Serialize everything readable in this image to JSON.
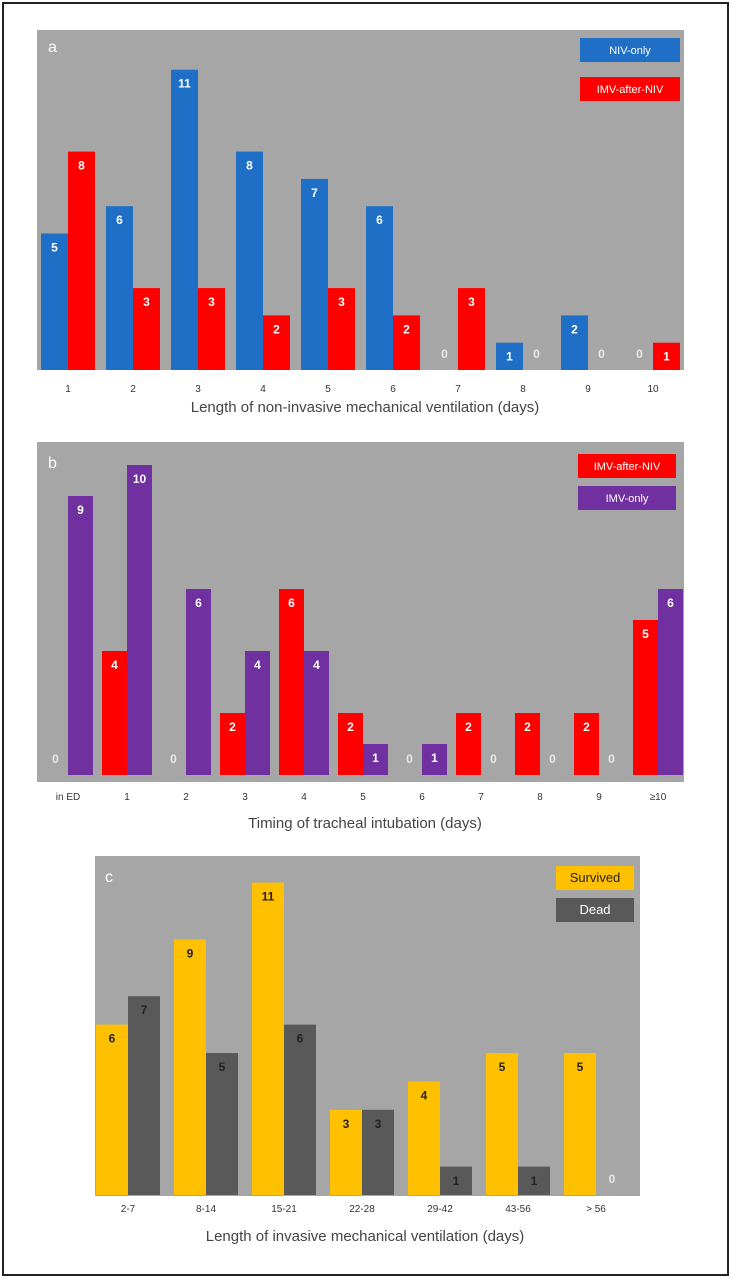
{
  "chart_data": [
    {
      "type": "bar",
      "panel_label": "a",
      "xlabel": "Length of non-invasive mechanical ventilation (days)",
      "categories": [
        "1",
        "2",
        "3",
        "4",
        "5",
        "6",
        "7",
        "8",
        "9",
        "10"
      ],
      "ylim": [
        0,
        11
      ],
      "legend_position": "top-right",
      "series": [
        {
          "name": "NIV-only",
          "color": "#1f6fc6",
          "values": [
            5,
            6,
            11,
            8,
            7,
            6,
            0,
            1,
            2,
            0
          ]
        },
        {
          "name": "IMV-after-NIV",
          "color": "#ff0000",
          "values": [
            8,
            3,
            3,
            2,
            3,
            2,
            3,
            0,
            0,
            1
          ]
        }
      ]
    },
    {
      "type": "bar",
      "panel_label": "b",
      "xlabel": "Timing of tracheal intubation (days)",
      "categories": [
        "in ED",
        "1",
        "2",
        "3",
        "4",
        "5",
        "6",
        "7",
        "8",
        "9",
        "≥10"
      ],
      "ylim": [
        0,
        10
      ],
      "legend_position": "top-right",
      "series": [
        {
          "name": "IMV-after-NIV",
          "color": "#ff0000",
          "values": [
            0,
            4,
            0,
            2,
            6,
            2,
            0,
            2,
            2,
            2,
            5
          ]
        },
        {
          "name": "IMV-only",
          "color": "#7030a0",
          "values": [
            9,
            10,
            6,
            4,
            4,
            1,
            1,
            0,
            0,
            0,
            6
          ]
        }
      ]
    },
    {
      "type": "bar",
      "panel_label": "c",
      "xlabel": "Length of invasive mechanical ventilation (days)",
      "categories": [
        "2-7",
        "8-14",
        "15-21",
        "22-28",
        "29-42",
        "43-56",
        "> 56"
      ],
      "ylim": [
        0,
        11
      ],
      "legend_position": "top-right",
      "series": [
        {
          "name": "Survived",
          "color": "#ffc000",
          "values": [
            6,
            9,
            11,
            3,
            4,
            5,
            5
          ]
        },
        {
          "name": "Dead",
          "color": "#595959",
          "values": [
            7,
            5,
            6,
            3,
            1,
            1,
            0
          ]
        }
      ]
    }
  ]
}
